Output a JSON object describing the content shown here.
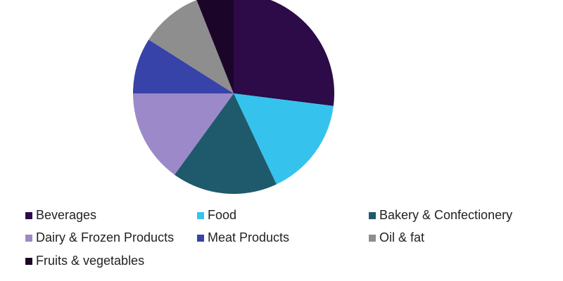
{
  "chart_data": {
    "type": "pie",
    "categories": [
      "Beverages",
      "Food",
      "Bakery & Confectionery",
      "Dairy & Frozen Products",
      "Meat Products",
      "Oil & fat",
      "Fruits & vegetables"
    ],
    "values": [
      27,
      16,
      17,
      15,
      9,
      10,
      6
    ],
    "colors": [
      "#2d0a48",
      "#35c3ee",
      "#1f5a6c",
      "#9c89c9",
      "#3743a8",
      "#8e8e8e",
      "#1b0629"
    ],
    "legend": "bottom"
  }
}
